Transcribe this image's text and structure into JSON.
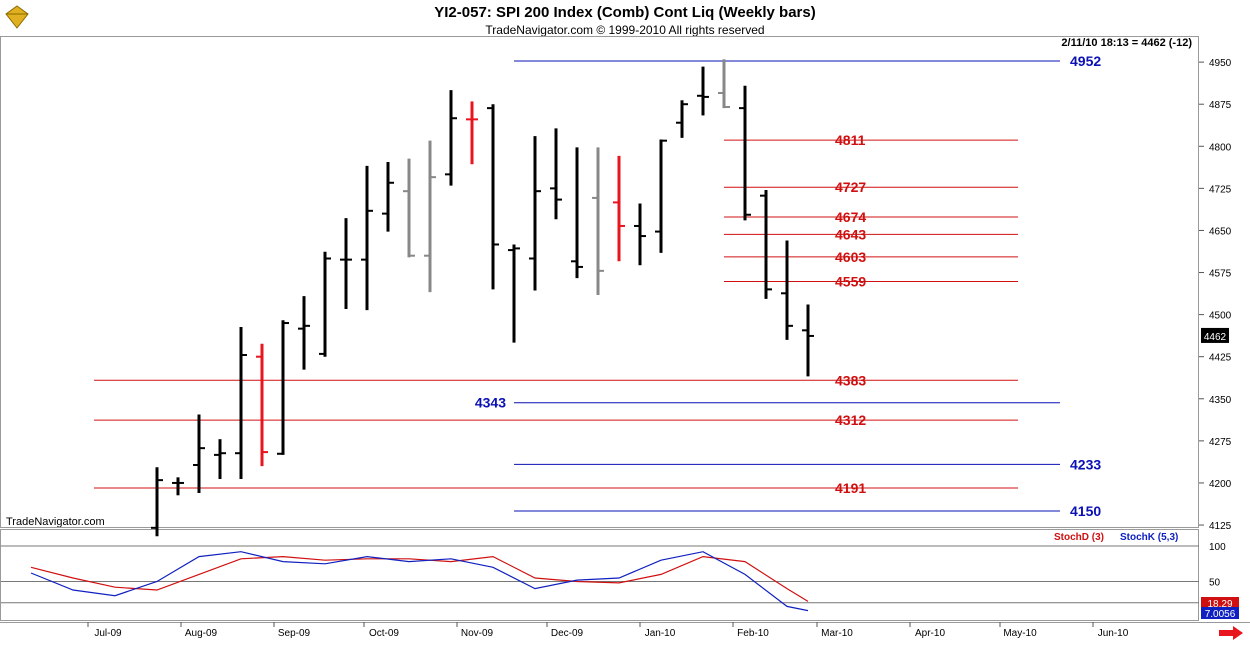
{
  "header": {
    "title": "YI2-057:  SPI 200 Index (Comb) Cont Liq  (Weekly bars)",
    "copyright": "TradeNavigator.com © 1999-2010 All rights reserved"
  },
  "info_line": "2/11/10 18:13 = 4462 (-12)",
  "brand_label": "TradeNavigator.com",
  "last_price_tag": "4462",
  "colors": {
    "up_bar": "#000000",
    "down_bar_red": "#e8141e",
    "neutral_bar_gray": "#888888",
    "level_red": "#d01010",
    "level_blue": "#0a10b4",
    "stoch_d": "#d01010",
    "stoch_k": "#1020c0"
  },
  "chart_data": [
    {
      "type": "ohlc",
      "title": "YI2-057:  SPI 200 Index (Comb) Cont Liq  (Weekly bars)",
      "y_ticks": [
        "4950",
        "4875",
        "4800",
        "4725",
        "4650",
        "4575",
        "4500",
        "4425",
        "4350",
        "4275",
        "4200",
        "4125"
      ],
      "ylim": [
        4110,
        4965
      ],
      "x_ticks": [
        "Jul-09",
        "Aug-09",
        "Sep-09",
        "Oct-09",
        "Nov-09",
        "Dec-09",
        "Jan-10",
        "Feb-10",
        "Mar-10",
        "Apr-10",
        "May-10",
        "Jun-10"
      ],
      "x_start": "2009-06-05",
      "bars": [
        {
          "w": "2009-07-24",
          "o": 4120,
          "h": 4228,
          "l": 4105,
          "c": 4205,
          "col": "black"
        },
        {
          "w": "2009-07-31",
          "o": 4200,
          "h": 4210,
          "l": 4178,
          "c": 4200,
          "col": "black"
        },
        {
          "w": "2009-08-07",
          "o": 4232,
          "h": 4322,
          "l": 4182,
          "c": 4262,
          "col": "black"
        },
        {
          "w": "2009-08-14",
          "o": 4250,
          "h": 4278,
          "l": 4207,
          "c": 4253,
          "col": "black"
        },
        {
          "w": "2009-08-21",
          "o": 4253,
          "h": 4478,
          "l": 4207,
          "c": 4428,
          "col": "black"
        },
        {
          "w": "2009-08-28",
          "o": 4425,
          "h": 4448,
          "l": 4230,
          "c": 4255,
          "col": "red"
        },
        {
          "w": "2009-09-04",
          "o": 4252,
          "h": 4490,
          "l": 4250,
          "c": 4485,
          "col": "black"
        },
        {
          "w": "2009-09-11",
          "o": 4475,
          "h": 4533,
          "l": 4402,
          "c": 4480,
          "col": "black"
        },
        {
          "w": "2009-09-18",
          "o": 4430,
          "h": 4612,
          "l": 4425,
          "c": 4600,
          "col": "black"
        },
        {
          "w": "2009-09-25",
          "o": 4598,
          "h": 4672,
          "l": 4510,
          "c": 4598,
          "col": "black"
        },
        {
          "w": "2009-10-02",
          "o": 4598,
          "h": 4765,
          "l": 4508,
          "c": 4685,
          "col": "black"
        },
        {
          "w": "2009-10-09",
          "o": 4680,
          "h": 4772,
          "l": 4648,
          "c": 4735,
          "col": "black"
        },
        {
          "w": "2009-10-16",
          "o": 4720,
          "h": 4778,
          "l": 4602,
          "c": 4605,
          "col": "gray"
        },
        {
          "w": "2009-10-23",
          "o": 4605,
          "h": 4810,
          "l": 4540,
          "c": 4745,
          "col": "gray"
        },
        {
          "w": "2009-10-30",
          "o": 4750,
          "h": 4900,
          "l": 4730,
          "c": 4850,
          "col": "black"
        },
        {
          "w": "2009-11-06",
          "o": 4848,
          "h": 4880,
          "l": 4768,
          "c": 4848,
          "col": "red"
        },
        {
          "w": "2009-11-13",
          "o": 4868,
          "h": 4875,
          "l": 4545,
          "c": 4625,
          "col": "black"
        },
        {
          "w": "2009-11-20",
          "o": 4615,
          "h": 4625,
          "l": 4450,
          "c": 4618,
          "col": "black"
        },
        {
          "w": "2009-11-27",
          "o": 4600,
          "h": 4818,
          "l": 4543,
          "c": 4720,
          "col": "black"
        },
        {
          "w": "2009-12-04",
          "o": 4725,
          "h": 4832,
          "l": 4670,
          "c": 4705,
          "col": "black"
        },
        {
          "w": "2009-12-11",
          "o": 4595,
          "h": 4798,
          "l": 4565,
          "c": 4585,
          "col": "black"
        },
        {
          "w": "2009-12-18",
          "o": 4708,
          "h": 4798,
          "l": 4535,
          "c": 4578,
          "col": "gray"
        },
        {
          "w": "2009-12-25",
          "o": 4700,
          "h": 4783,
          "l": 4595,
          "c": 4658,
          "col": "red"
        },
        {
          "w": "2010-01-01",
          "o": 4658,
          "h": 4698,
          "l": 4588,
          "c": 4640,
          "col": "black"
        },
        {
          "w": "2010-01-08",
          "o": 4648,
          "h": 4812,
          "l": 4610,
          "c": 4810,
          "col": "black"
        },
        {
          "w": "2010-01-15",
          "o": 4842,
          "h": 4882,
          "l": 4815,
          "c": 4875,
          "col": "black"
        },
        {
          "w": "2010-01-22",
          "o": 4890,
          "h": 4942,
          "l": 4855,
          "c": 4888,
          "col": "black"
        },
        {
          "w": "2010-01-29",
          "o": 4895,
          "h": 4955,
          "l": 4868,
          "c": 4870,
          "col": "gray"
        },
        {
          "w": "2010-02-05",
          "o": 4868,
          "h": 4908,
          "l": 4668,
          "c": 4678,
          "col": "black"
        },
        {
          "w": "2010-02-12",
          "o": 4712,
          "h": 4722,
          "l": 4528,
          "c": 4545,
          "col": "black"
        },
        {
          "w": "2010-02-19",
          "o": 4538,
          "h": 4632,
          "l": 4455,
          "c": 4480,
          "col": "black"
        },
        {
          "w": "2010-02-26",
          "o": 4472,
          "h": 4518,
          "l": 4390,
          "c": 4462,
          "col": "black"
        }
      ],
      "levels": [
        {
          "value": "4952",
          "price": 4952,
          "color": "blue",
          "from": "2009-11-20",
          "to": "2010-05-21",
          "label_pos": "right"
        },
        {
          "value": "4811",
          "price": 4811,
          "color": "red",
          "from": "2010-01-29",
          "to": "2010-05-07",
          "label_pos": "right"
        },
        {
          "value": "4727",
          "price": 4727,
          "color": "red",
          "from": "2010-01-29",
          "to": "2010-05-07",
          "label_pos": "right"
        },
        {
          "value": "4674",
          "price": 4674,
          "color": "red",
          "from": "2010-01-29",
          "to": "2010-05-07",
          "label_pos": "right"
        },
        {
          "value": "4643",
          "price": 4643,
          "color": "red",
          "from": "2010-01-29",
          "to": "2010-05-07",
          "label_pos": "right"
        },
        {
          "value": "4603",
          "price": 4603,
          "color": "red",
          "from": "2010-01-29",
          "to": "2010-05-07",
          "label_pos": "right"
        },
        {
          "value": "4559",
          "price": 4559,
          "color": "red",
          "from": "2010-01-29",
          "to": "2010-05-07",
          "label_pos": "right"
        },
        {
          "value": "4383",
          "price": 4383,
          "color": "red",
          "from": "2009-07-03",
          "to": "2010-05-07",
          "label_pos": "right"
        },
        {
          "value": "4343",
          "price": 4343,
          "color": "blue",
          "from": "2009-11-20",
          "to": "2010-05-21",
          "label_pos": "left"
        },
        {
          "value": "4312",
          "price": 4312,
          "color": "red",
          "from": "2009-07-03",
          "to": "2010-05-07",
          "label_pos": "right"
        },
        {
          "value": "4233",
          "price": 4233,
          "color": "blue",
          "from": "2009-11-20",
          "to": "2010-05-21",
          "label_pos": "right"
        },
        {
          "value": "4191",
          "price": 4191,
          "color": "red",
          "from": "2009-07-03",
          "to": "2010-05-07",
          "label_pos": "right"
        },
        {
          "value": "4150",
          "price": 4150,
          "color": "blue",
          "from": "2009-11-20",
          "to": "2010-05-21",
          "label_pos": "right"
        }
      ]
    },
    {
      "type": "line",
      "indicator": "Stochastic",
      "y_ticks": [
        "100",
        "50"
      ],
      "ylim": [
        0,
        110
      ],
      "series": [
        {
          "name": "StochD (3)",
          "color": "#d01010",
          "x": [
            "2009-06-12",
            "2009-06-26",
            "2009-07-10",
            "2009-07-24",
            "2009-08-07",
            "2009-08-21",
            "2009-09-04",
            "2009-09-18",
            "2009-10-02",
            "2009-10-16",
            "2009-10-30",
            "2009-11-13",
            "2009-11-27",
            "2009-12-11",
            "2009-12-25",
            "2010-01-08",
            "2010-01-22",
            "2010-02-05",
            "2010-02-19",
            "2010-02-26"
          ],
          "values": [
            70,
            55,
            42,
            38,
            60,
            82,
            85,
            80,
            82,
            82,
            78,
            85,
            55,
            50,
            48,
            60,
            85,
            78,
            40,
            22
          ]
        },
        {
          "name": "StochK (5,3)",
          "color": "#1020c0",
          "x": [
            "2009-06-12",
            "2009-06-26",
            "2009-07-10",
            "2009-07-24",
            "2009-08-07",
            "2009-08-21",
            "2009-09-04",
            "2009-09-18",
            "2009-10-02",
            "2009-10-16",
            "2009-10-30",
            "2009-11-13",
            "2009-11-27",
            "2009-12-11",
            "2009-12-25",
            "2010-01-08",
            "2010-01-22",
            "2010-02-05",
            "2010-02-19",
            "2010-02-26"
          ],
          "values": [
            62,
            38,
            30,
            50,
            85,
            92,
            78,
            75,
            85,
            78,
            82,
            70,
            40,
            52,
            55,
            80,
            92,
            60,
            15,
            9
          ]
        }
      ],
      "readouts": [
        "18.29",
        "7.0056"
      ]
    }
  ]
}
